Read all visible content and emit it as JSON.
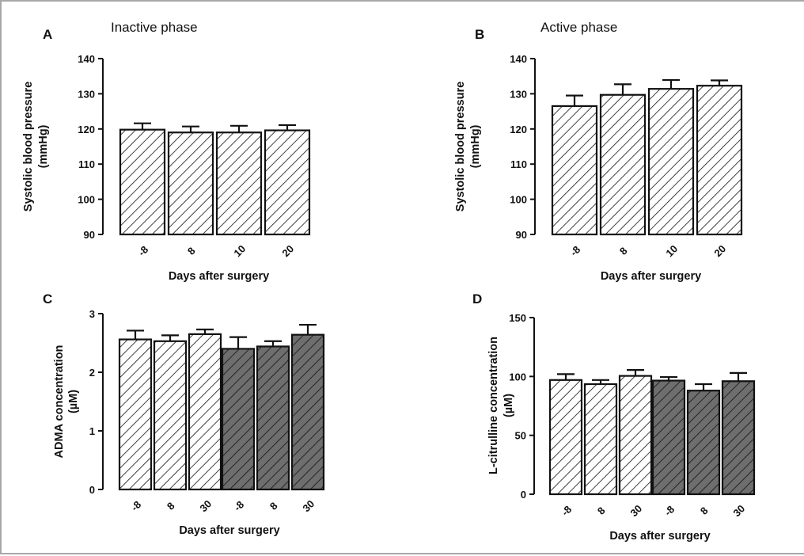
{
  "chart_data": [
    {
      "type": "bar",
      "panel": "A",
      "subtitle": "Inactive phase",
      "xlabel": "Days after surgery",
      "ylabel": "Systolic blood pressure (mmHg)",
      "ylabel_lines": [
        "Systolic blood pressure",
        "(mmHg)"
      ],
      "ylim": [
        90,
        140
      ],
      "yticks": [
        90,
        100,
        110,
        120,
        130,
        140
      ],
      "groups": [
        {
          "fill": "hatched",
          "categories": [
            "-8",
            "8",
            "10",
            "20"
          ],
          "values": [
            119.8,
            119.0,
            119.0,
            119.6
          ],
          "errors": [
            1.8,
            1.7,
            1.9,
            1.5
          ]
        }
      ]
    },
    {
      "type": "bar",
      "panel": "B",
      "subtitle": "Active phase",
      "xlabel": "Days after surgery",
      "ylabel": "Systolic blood pressure (mmHg)",
      "ylabel_lines": [
        "Systolic blood pressure",
        "(mmHg)"
      ],
      "ylim": [
        90,
        140
      ],
      "yticks": [
        90,
        100,
        110,
        120,
        130,
        140
      ],
      "groups": [
        {
          "fill": "hatched",
          "categories": [
            "-8",
            "8",
            "10",
            "20"
          ],
          "values": [
            126.5,
            129.7,
            131.4,
            132.3
          ],
          "errors": [
            3.0,
            3.0,
            2.5,
            1.5
          ]
        }
      ]
    },
    {
      "type": "bar",
      "panel": "C",
      "subtitle": "",
      "xlabel": "Days after surgery",
      "ylabel": "ADMA concentration (µM)",
      "ylabel_lines": [
        "ADMA concentration",
        "(µM)"
      ],
      "ylim": [
        0,
        3
      ],
      "yticks": [
        0,
        1,
        2,
        3
      ],
      "groups": [
        {
          "fill": "hatched",
          "categories": [
            "-8",
            "8",
            "30"
          ],
          "values": [
            2.56,
            2.53,
            2.65
          ],
          "errors": [
            0.15,
            0.1,
            0.08
          ]
        },
        {
          "fill": "dark-hatched",
          "categories": [
            "-8",
            "8",
            "30"
          ],
          "values": [
            2.4,
            2.44,
            2.64
          ],
          "errors": [
            0.2,
            0.09,
            0.17
          ]
        }
      ]
    },
    {
      "type": "bar",
      "panel": "D",
      "subtitle": "",
      "xlabel": "Days after surgery",
      "ylabel": "L-citrulline concentration (µM)",
      "ylabel_lines": [
        "L-citrulline concentration",
        "(µM)"
      ],
      "ylim": [
        0,
        150
      ],
      "yticks": [
        0,
        50,
        100,
        150
      ],
      "groups": [
        {
          "fill": "hatched",
          "categories": [
            "-8",
            "8",
            "30"
          ],
          "values": [
            97,
            93.5,
            100.5
          ],
          "errors": [
            5,
            3.5,
            5
          ]
        },
        {
          "fill": "dark-hatched",
          "categories": [
            "-8",
            "8",
            "30"
          ],
          "values": [
            96.5,
            88,
            96
          ],
          "errors": [
            3,
            5.5,
            7
          ]
        }
      ]
    }
  ],
  "colors": {
    "bar_fill_light": "#ffffff",
    "bar_fill_dark": "#6e6e6e",
    "hatch_line": "#111111",
    "frame": "#a8a8a8"
  }
}
